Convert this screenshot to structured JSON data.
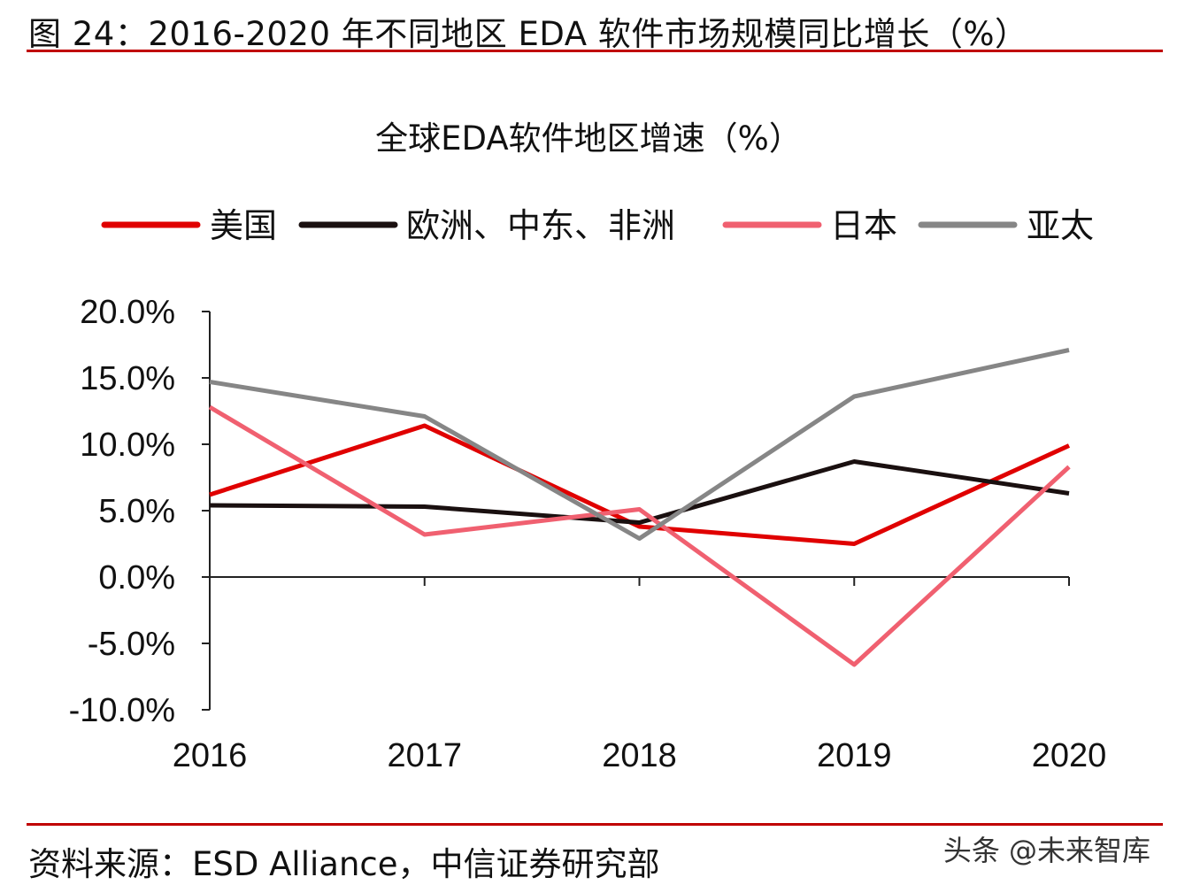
{
  "figure_title": "图 24：2016-2020 年不同地区 EDA 软件市场规模同比增长（%）",
  "source": "资料来源：ESD Alliance，中信证券研究部",
  "watermark": "头条 @未来智库",
  "chart_data": {
    "type": "line",
    "title": "全球EDA软件地区增速（%）",
    "categories": [
      "2016",
      "2017",
      "2018",
      "2019",
      "2020"
    ],
    "ylim": [
      -10,
      20
    ],
    "yticks": [
      "20.0%",
      "15.0%",
      "10.0%",
      "5.0%",
      "0.0%",
      "-5.0%",
      "-10.0%"
    ],
    "ytick_values": [
      20,
      15,
      10,
      5,
      0,
      -5,
      -10
    ],
    "legend_position": "top",
    "grid": false,
    "series": [
      {
        "name": "美国",
        "color": "#e00000",
        "values": [
          6.2,
          11.4,
          3.8,
          2.5,
          9.9
        ]
      },
      {
        "name": "欧洲、中东、非洲",
        "color": "#1a1010",
        "values": [
          5.4,
          5.3,
          4.1,
          8.7,
          6.3
        ]
      },
      {
        "name": "日本",
        "color": "#f06070",
        "values": [
          12.8,
          3.2,
          5.1,
          -6.6,
          8.3
        ]
      },
      {
        "name": "亚太",
        "color": "#868686",
        "values": [
          14.7,
          12.1,
          2.9,
          13.6,
          17.1
        ]
      }
    ]
  }
}
